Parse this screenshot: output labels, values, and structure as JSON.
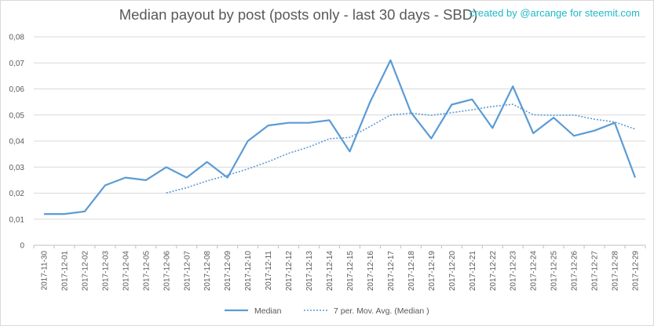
{
  "header": {
    "title": "Median payout by post (posts only - last 30 days - SBD)",
    "credit": "created by @arcange for steemit.com"
  },
  "chart_data": {
    "type": "line",
    "title": "Median payout by post (posts only - last 30 days - SBD)",
    "xlabel": "",
    "ylabel": "",
    "ylim": [
      0,
      0.08
    ],
    "yticks": [
      "0",
      "0,01",
      "0,02",
      "0,03",
      "0,04",
      "0,05",
      "0,06",
      "0,07",
      "0,08"
    ],
    "grid": "horizontal",
    "legend_position": "bottom",
    "categories": [
      "2017-11-30",
      "2017-12-01",
      "2017-12-02",
      "2017-12-03",
      "2017-12-04",
      "2017-12-05",
      "2017-12-06",
      "2017-12-07",
      "2017-12-08",
      "2017-12-09",
      "2017-12-10",
      "2017-12-11",
      "2017-12-12",
      "2017-12-13",
      "2017-12-14",
      "2017-12-15",
      "2017-12-16",
      "2017-12-17",
      "2017-12-18",
      "2017-12-19",
      "2017-12-20",
      "2017-12-21",
      "2017-12-22",
      "2017-12-23",
      "2017-12-24",
      "2017-12-25",
      "2017-12-26",
      "2017-12-27",
      "2017-12-28",
      "2017-12-29"
    ],
    "series": [
      {
        "name": "Median",
        "style": "solid",
        "color": "#5b9bd5",
        "values": [
          0.012,
          0.012,
          0.013,
          0.023,
          0.026,
          0.025,
          0.03,
          0.026,
          0.032,
          0.026,
          0.04,
          0.046,
          0.047,
          0.047,
          0.048,
          0.036,
          0.055,
          0.071,
          0.051,
          0.041,
          0.054,
          0.056,
          0.045,
          0.061,
          0.043,
          0.049,
          0.042,
          0.044,
          0.047,
          0.026
        ]
      },
      {
        "name": "7 per. Mov. Avg. (Median )",
        "style": "dotted",
        "color": "#5b9bd5",
        "values": [
          null,
          null,
          null,
          null,
          null,
          null,
          0.0201,
          0.0221,
          0.0247,
          0.0269,
          0.0293,
          0.0321,
          0.0353,
          0.0377,
          0.0409,
          0.0414,
          0.0456,
          0.05,
          0.0507,
          0.0499,
          0.0509,
          0.052,
          0.0533,
          0.0541,
          0.0501,
          0.0499,
          0.05,
          0.0484,
          0.0473,
          0.0446
        ]
      }
    ]
  }
}
